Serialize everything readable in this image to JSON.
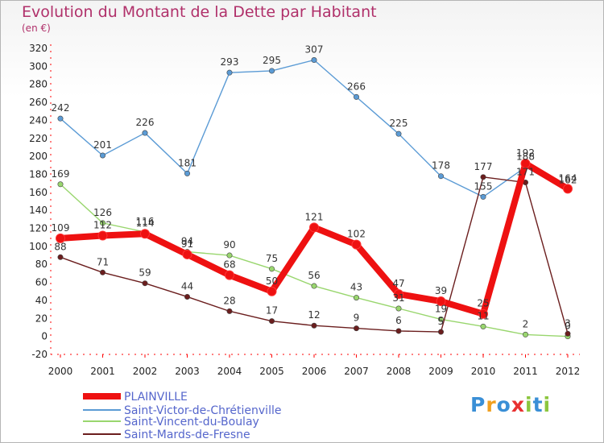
{
  "title": "Evolution du Montant de la Dette par Habitant",
  "subtitle": "(en €)",
  "logo_text": "Proxiti",
  "chart_data": {
    "type": "line",
    "title": "Evolution du Montant de la Dette par Habitant",
    "ylabel": "(en €)",
    "x": [
      "2000",
      "2001",
      "2002",
      "2003",
      "2004",
      "2005",
      "2006",
      "2007",
      "2008",
      "2009",
      "2010",
      "2011",
      "2012"
    ],
    "ylim": [
      -20,
      320
    ],
    "yticks": [
      -20,
      0,
      20,
      40,
      60,
      80,
      100,
      120,
      140,
      160,
      180,
      200,
      220,
      240,
      260,
      280,
      300,
      320
    ],
    "grid": false,
    "legend_position": "bottom-left",
    "series": [
      {
        "name": "PLAINVILLE",
        "color": "#ee1111",
        "values": [
          109,
          112,
          114,
          91,
          68,
          50,
          121,
          102,
          47,
          39,
          25,
          192,
          164
        ],
        "labels": [
          "109",
          "112",
          "114",
          "91",
          "68",
          "50",
          "121",
          "102",
          "47",
          "39",
          "25",
          "192",
          "164"
        ]
      },
      {
        "name": "Saint-Victor-de-Chrétienville",
        "color": "#5b9bd5",
        "values": [
          242,
          201,
          226,
          181,
          293,
          295,
          307,
          266,
          225,
          178,
          155,
          188,
          162
        ],
        "labels": [
          "242",
          "201",
          "226",
          "181",
          "293",
          "295",
          "307",
          "266",
          "225",
          "178",
          "155",
          "188",
          "162"
        ]
      },
      {
        "name": "Saint-Vincent-du-Boulay",
        "color": "#99d66e",
        "values": [
          169,
          126,
          116,
          94,
          90,
          75,
          56,
          43,
          31,
          19,
          11,
          2,
          0
        ],
        "labels": [
          "169",
          "126",
          "116",
          "94",
          "90",
          "75",
          "56",
          "43",
          "31",
          "19",
          "11",
          "2",
          "0"
        ]
      },
      {
        "name": "Saint-Mards-de-Fresne",
        "color": "#6b1e1e",
        "values": [
          88,
          71,
          59,
          44,
          28,
          17,
          12,
          9,
          6,
          5,
          177,
          171,
          3
        ],
        "labels": [
          "88",
          "71",
          "59",
          "44",
          "28",
          "17",
          "12",
          "9",
          "6",
          "5",
          "177",
          "171",
          "3"
        ]
      }
    ]
  }
}
